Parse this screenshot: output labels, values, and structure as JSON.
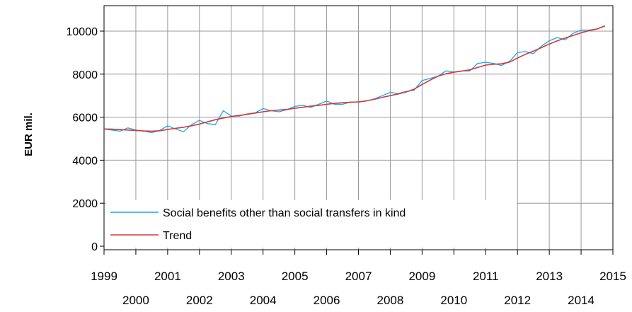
{
  "chart_data": {
    "type": "line",
    "title": "",
    "xlabel": "",
    "ylabel": "EUR mil.",
    "xlim": [
      1999,
      2015
    ],
    "ylim": [
      0,
      11200
    ],
    "grid": true,
    "legend_placement": "bottom-left",
    "y_ticks": [
      0,
      2000,
      4000,
      6000,
      8000,
      10000
    ],
    "y_tick_labels": [
      "0",
      "2000",
      "4000",
      "6000",
      "8000",
      "10000"
    ],
    "x_ticks_upper": [
      1999,
      2001,
      2003,
      2005,
      2007,
      2009,
      2011,
      2013,
      2015
    ],
    "x_tick_labels_upper": [
      "1999",
      "2001",
      "2003",
      "2005",
      "2007",
      "2009",
      "2011",
      "2013",
      "2015"
    ],
    "x_ticks_lower": [
      2000,
      2002,
      2004,
      2006,
      2008,
      2010,
      2012,
      2014
    ],
    "x_tick_labels_lower": [
      "2000",
      "2002",
      "2004",
      "2006",
      "2008",
      "2010",
      "2012",
      "2014"
    ],
    "x": [
      1999.0,
      1999.25,
      1999.5,
      1999.75,
      2000.0,
      2000.25,
      2000.5,
      2000.75,
      2001.0,
      2001.25,
      2001.5,
      2001.75,
      2002.0,
      2002.25,
      2002.5,
      2002.75,
      2003.0,
      2003.25,
      2003.5,
      2003.75,
      2004.0,
      2004.25,
      2004.5,
      2004.75,
      2005.0,
      2005.25,
      2005.5,
      2005.75,
      2006.0,
      2006.25,
      2006.5,
      2006.75,
      2007.0,
      2007.25,
      2007.5,
      2007.75,
      2008.0,
      2008.25,
      2008.5,
      2008.75,
      2009.0,
      2009.25,
      2009.5,
      2009.75,
      2010.0,
      2010.25,
      2010.5,
      2010.75,
      2011.0,
      2011.25,
      2011.5,
      2011.75,
      2012.0,
      2012.25,
      2012.5,
      2012.75,
      2013.0,
      2013.25,
      2013.5,
      2013.75,
      2014.0,
      2014.25,
      2014.5,
      2014.75
    ],
    "series": [
      {
        "name": "Social benefits other than social transfers in kind",
        "color": "#1aa7e8",
        "values": [
          5450,
          5400,
          5350,
          5500,
          5400,
          5350,
          5280,
          5380,
          5600,
          5450,
          5320,
          5650,
          5850,
          5700,
          5650,
          6300,
          6050,
          6050,
          6150,
          6200,
          6400,
          6300,
          6250,
          6350,
          6500,
          6550,
          6450,
          6600,
          6750,
          6600,
          6600,
          6700,
          6700,
          6750,
          6850,
          7000,
          7150,
          7100,
          7200,
          7250,
          7700,
          7800,
          7900,
          8150,
          8100,
          8150,
          8150,
          8500,
          8550,
          8500,
          8400,
          8600,
          9000,
          9050,
          8950,
          9300,
          9550,
          9700,
          9600,
          9900,
          10050,
          10050,
          10100,
          10250
        ]
      },
      {
        "name": "Trend",
        "color": "#d0393b",
        "values": [
          5450,
          5440,
          5420,
          5400,
          5380,
          5360,
          5350,
          5370,
          5430,
          5480,
          5530,
          5600,
          5680,
          5780,
          5880,
          5960,
          6030,
          6080,
          6130,
          6190,
          6250,
          6300,
          6330,
          6360,
          6410,
          6460,
          6510,
          6550,
          6600,
          6640,
          6670,
          6690,
          6710,
          6760,
          6830,
          6920,
          7000,
          7080,
          7170,
          7300,
          7520,
          7720,
          7900,
          8020,
          8090,
          8140,
          8200,
          8310,
          8420,
          8460,
          8480,
          8560,
          8750,
          8920,
          9070,
          9230,
          9400,
          9550,
          9680,
          9800,
          9920,
          10020,
          10100,
          10240
        ]
      }
    ]
  }
}
